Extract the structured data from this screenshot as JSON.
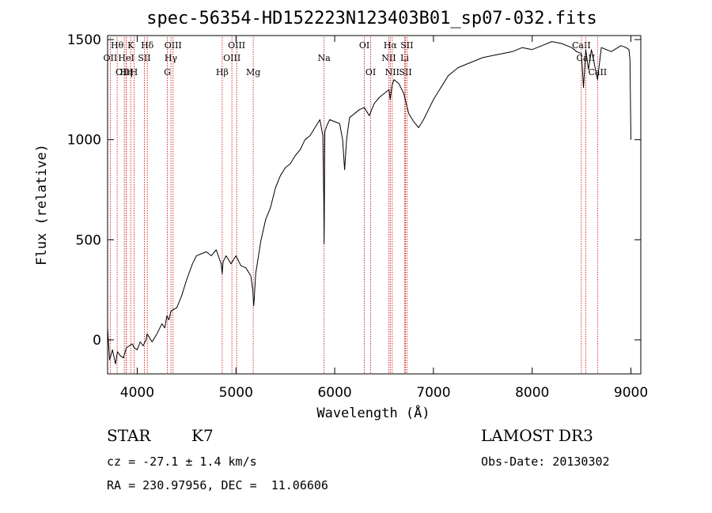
{
  "chart_data": {
    "type": "line",
    "title": "spec-56354-HD152223N123403B01_sp07-032.fits",
    "xlabel": "Wavelength (Å)",
    "ylabel": "Flux (relative)",
    "xlim": [
      3700,
      9100
    ],
    "ylim": [
      -170,
      1520
    ],
    "xticks": [
      4000,
      5000,
      6000,
      7000,
      8000,
      9000
    ],
    "yticks": [
      0,
      500,
      1000,
      1500
    ],
    "grid": false,
    "series": [
      {
        "x": [
          3700,
          3720,
          3750,
          3780,
          3800,
          3830,
          3860,
          3890,
          3920,
          3950,
          3970,
          4000,
          4030,
          4060,
          4090,
          4100,
          4150,
          4200,
          4250,
          4280,
          4300,
          4320,
          4340,
          4360,
          4400,
          4450,
          4500,
          4530,
          4560,
          4600,
          4650,
          4700,
          4750,
          4800,
          4850,
          4861,
          4870,
          4900,
          4950,
          5000,
          5050,
          5100,
          5150,
          5170,
          5180,
          5183,
          5200,
          5250,
          5300,
          5350,
          5400,
          5450,
          5500,
          5550,
          5600,
          5650,
          5700,
          5750,
          5800,
          5850,
          5880,
          5890,
          5893,
          5896,
          5900,
          5920,
          5950,
          6000,
          6050,
          6080,
          6100,
          6120,
          6150,
          6200,
          6250,
          6300,
          6350,
          6400,
          6450,
          6500,
          6550,
          6563,
          6580,
          6600,
          6650,
          6700,
          6750,
          6800,
          6850,
          6900,
          6950,
          7000,
          7050,
          7100,
          7150,
          7200,
          7250,
          7300,
          7400,
          7500,
          7600,
          7700,
          7800,
          7900,
          8000,
          8100,
          8200,
          8300,
          8400,
          8450,
          8498,
          8520,
          8542,
          8570,
          8600,
          8662,
          8700,
          8800,
          8900,
          8950,
          8980,
          8990,
          9000
        ],
        "y": [
          60,
          -100,
          -50,
          -120,
          -60,
          -80,
          -90,
          -40,
          -30,
          -20,
          -40,
          -50,
          -10,
          -30,
          0,
          30,
          -10,
          30,
          80,
          60,
          120,
          100,
          140,
          150,
          160,
          220,
          300,
          340,
          380,
          420,
          430,
          440,
          420,
          450,
          380,
          330,
          390,
          420,
          380,
          420,
          370,
          360,
          320,
          250,
          170,
          190,
          330,
          490,
          600,
          660,
          760,
          820,
          860,
          880,
          920,
          950,
          1000,
          1020,
          1060,
          1100,
          1020,
          700,
          480,
          720,
          1040,
          1070,
          1100,
          1090,
          1080,
          1000,
          850,
          1000,
          1110,
          1130,
          1150,
          1160,
          1120,
          1180,
          1210,
          1230,
          1250,
          1200,
          1270,
          1300,
          1280,
          1230,
          1130,
          1090,
          1060,
          1100,
          1150,
          1200,
          1240,
          1280,
          1320,
          1340,
          1360,
          1370,
          1390,
          1410,
          1420,
          1430,
          1440,
          1460,
          1450,
          1470,
          1490,
          1480,
          1460,
          1440,
          1430,
          1260,
          1450,
          1350,
          1450,
          1300,
          1460,
          1440,
          1470,
          1460,
          1450,
          1400,
          1000
        ]
      }
    ],
    "lines": [
      {
        "name": "OII",
        "x": 3727,
        "row": 1
      },
      {
        "name": "Hθ",
        "x": 3797,
        "row": 0
      },
      {
        "name": "OIII",
        "x": 3869,
        "row": 2
      },
      {
        "name": "Hη",
        "x": 3889,
        "row": 2
      },
      {
        "name": "HeI",
        "x": 3889,
        "row": 1
      },
      {
        "name": "K",
        "x": 3934,
        "row": 0
      },
      {
        "name": "H",
        "x": 3968,
        "row": 2
      },
      {
        "name": "SII",
        "x": 4072,
        "row": 1
      },
      {
        "name": "Hδ",
        "x": 4102,
        "row": 0
      },
      {
        "name": "G",
        "x": 4305,
        "row": 2
      },
      {
        "name": "Hγ",
        "x": 4341,
        "row": 1
      },
      {
        "name": "OIII",
        "x": 4363,
        "row": 0
      },
      {
        "name": "Hβ",
        "x": 4861,
        "row": 2
      },
      {
        "name": "OIII",
        "x": 4959,
        "row": 1
      },
      {
        "name": "OIII",
        "x": 5007,
        "row": 0
      },
      {
        "name": "Mg",
        "x": 5175,
        "row": 2
      },
      {
        "name": "Na",
        "x": 5893,
        "row": 1
      },
      {
        "name": "OI",
        "x": 6300,
        "row": 0
      },
      {
        "name": "OI",
        "x": 6364,
        "row": 2
      },
      {
        "name": "NII",
        "x": 6548,
        "row": 1
      },
      {
        "name": "Hα",
        "x": 6563,
        "row": 0
      },
      {
        "name": "NII",
        "x": 6583,
        "row": 2
      },
      {
        "name": "Li",
        "x": 6708,
        "row": 1
      },
      {
        "name": "SII",
        "x": 6717,
        "row": 2
      },
      {
        "name": "SII",
        "x": 6731,
        "row": 0
      },
      {
        "name": "CaII",
        "x": 8498,
        "row": 0
      },
      {
        "name": "CaII",
        "x": 8542,
        "row": 1
      },
      {
        "name": "CaII",
        "x": 8662,
        "row": 2
      }
    ]
  },
  "info": {
    "object": "STAR",
    "subclass": "K7",
    "survey": "LAMOST DR3",
    "cz": "cz = -27.1 ± 1.4 km/s",
    "obs_date": "Obs-Date: 20130302",
    "radec": "RA = 230.97956, DEC =  11.06606"
  },
  "colors": {
    "spectrum": "#000000",
    "line_marker": "#cc0000",
    "background": "#ffffff"
  }
}
